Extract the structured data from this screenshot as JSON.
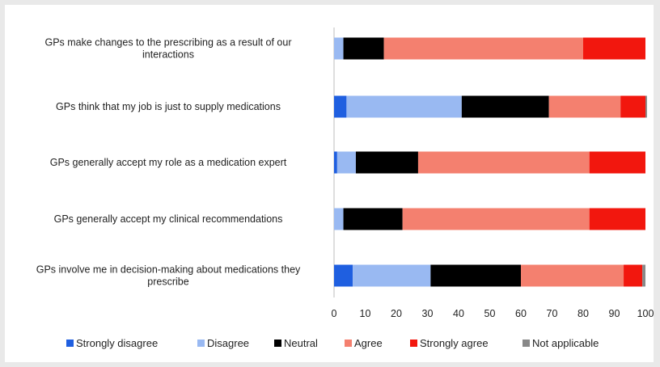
{
  "chart_data": {
    "type": "bar",
    "orientation": "horizontal",
    "stacked": true,
    "categories": [
      [
        "GPs make changes to the prescribing as a result of our",
        "interactions"
      ],
      [
        "GPs think that my job is just to supply medications"
      ],
      [
        "GPs generally accept my role as a medication expert"
      ],
      [
        "GPs generally accept my clinical recommendations"
      ],
      [
        "GPs involve me in decision-making about medications they",
        "prescribe"
      ]
    ],
    "series": [
      {
        "name": "Strongly disagree",
        "color": "#1f5fe0",
        "values": [
          0,
          4,
          1,
          0,
          6
        ]
      },
      {
        "name": "Disagree",
        "color": "#99b9f2",
        "values": [
          3,
          37,
          6,
          3,
          25
        ]
      },
      {
        "name": "Neutral",
        "color": "#000000",
        "values": [
          13,
          28,
          20,
          19,
          29
        ]
      },
      {
        "name": "Agree",
        "color": "#f4806f",
        "values": [
          64,
          23,
          55,
          60,
          33
        ]
      },
      {
        "name": "Strongly agree",
        "color": "#f2170e",
        "values": [
          20,
          8,
          18,
          18,
          6
        ]
      },
      {
        "name": "Not applicable",
        "color": "#888888",
        "values": [
          0,
          0.5,
          0,
          0,
          1
        ]
      }
    ],
    "x_ticks": [
      "0",
      "10",
      "20",
      "30",
      "40",
      "50",
      "60",
      "70",
      "80",
      "90",
      "100"
    ],
    "xlim": [
      0,
      100
    ],
    "grid": false,
    "legend": "bottom"
  }
}
